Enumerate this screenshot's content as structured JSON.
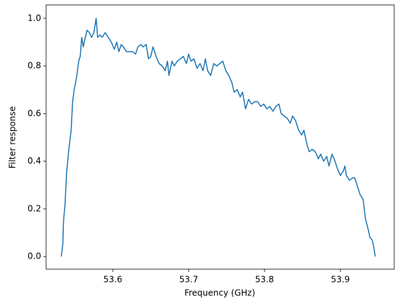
{
  "chart_data": {
    "type": "line",
    "xlabel": "Frequency (GHz)",
    "ylabel": "Filter response",
    "color": "#1f77b4",
    "x": [
      53.532,
      53.534,
      53.535,
      53.537,
      53.539,
      53.542,
      53.545,
      53.547,
      53.549,
      53.551,
      53.553,
      53.555,
      53.557,
      53.559,
      53.561,
      53.563,
      53.566,
      53.569,
      53.572,
      53.575,
      53.578,
      53.58,
      53.583,
      53.586,
      53.59,
      53.594,
      53.598,
      53.602,
      53.605,
      53.608,
      53.611,
      53.614,
      53.618,
      53.622,
      53.626,
      53.63,
      53.633,
      53.637,
      53.64,
      53.644,
      53.647,
      53.65,
      53.653,
      53.657,
      53.661,
      53.665,
      53.669,
      53.672,
      53.674,
      53.678,
      53.681,
      53.685,
      53.689,
      53.693,
      53.697,
      53.7,
      53.703,
      53.707,
      53.711,
      53.715,
      53.719,
      53.722,
      53.725,
      53.729,
      53.733,
      53.737,
      53.741,
      53.745,
      53.749,
      53.753,
      53.757,
      53.76,
      53.764,
      53.768,
      53.771,
      53.775,
      53.779,
      53.783,
      53.787,
      53.791,
      53.795,
      53.799,
      53.803,
      53.807,
      53.811,
      53.815,
      53.819,
      53.822,
      53.826,
      53.83,
      53.834,
      53.837,
      53.841,
      53.845,
      53.849,
      53.852,
      53.856,
      53.859,
      53.863,
      53.867,
      53.871,
      53.874,
      53.878,
      53.882,
      53.885,
      53.889,
      53.893,
      53.896,
      53.9,
      53.904,
      53.906,
      53.908,
      53.912,
      53.916,
      53.919,
      53.922,
      53.926,
      53.93,
      53.933,
      53.937,
      53.939,
      53.942,
      53.944,
      53.946
    ],
    "values": [
      0.0,
      0.05,
      0.15,
      0.22,
      0.35,
      0.45,
      0.53,
      0.65,
      0.7,
      0.73,
      0.77,
      0.82,
      0.84,
      0.92,
      0.88,
      0.91,
      0.95,
      0.94,
      0.92,
      0.94,
      1.0,
      0.92,
      0.93,
      0.92,
      0.94,
      0.92,
      0.9,
      0.87,
      0.9,
      0.86,
      0.89,
      0.88,
      0.86,
      0.86,
      0.86,
      0.85,
      0.88,
      0.89,
      0.88,
      0.89,
      0.83,
      0.84,
      0.88,
      0.84,
      0.81,
      0.8,
      0.78,
      0.82,
      0.76,
      0.82,
      0.8,
      0.82,
      0.83,
      0.84,
      0.81,
      0.85,
      0.82,
      0.83,
      0.79,
      0.81,
      0.78,
      0.83,
      0.78,
      0.76,
      0.81,
      0.8,
      0.81,
      0.82,
      0.78,
      0.76,
      0.73,
      0.69,
      0.7,
      0.67,
      0.69,
      0.62,
      0.66,
      0.64,
      0.65,
      0.65,
      0.63,
      0.64,
      0.62,
      0.63,
      0.61,
      0.63,
      0.64,
      0.6,
      0.59,
      0.58,
      0.56,
      0.59,
      0.57,
      0.53,
      0.51,
      0.53,
      0.47,
      0.44,
      0.45,
      0.44,
      0.41,
      0.43,
      0.4,
      0.42,
      0.38,
      0.43,
      0.4,
      0.37,
      0.34,
      0.36,
      0.38,
      0.34,
      0.32,
      0.33,
      0.33,
      0.3,
      0.26,
      0.24,
      0.16,
      0.11,
      0.08,
      0.07,
      0.04,
      0.0
    ],
    "xlim": [
      53.512,
      53.971
    ],
    "ylim": [
      -0.053,
      1.056
    ],
    "xticks": [
      53.6,
      53.7,
      53.8,
      53.9
    ],
    "yticks": [
      {
        "value": 0,
        "label": "0.0"
      },
      0.2,
      0.4,
      0.6,
      0.8,
      {
        "value": 1,
        "label": "1.0"
      }
    ]
  }
}
